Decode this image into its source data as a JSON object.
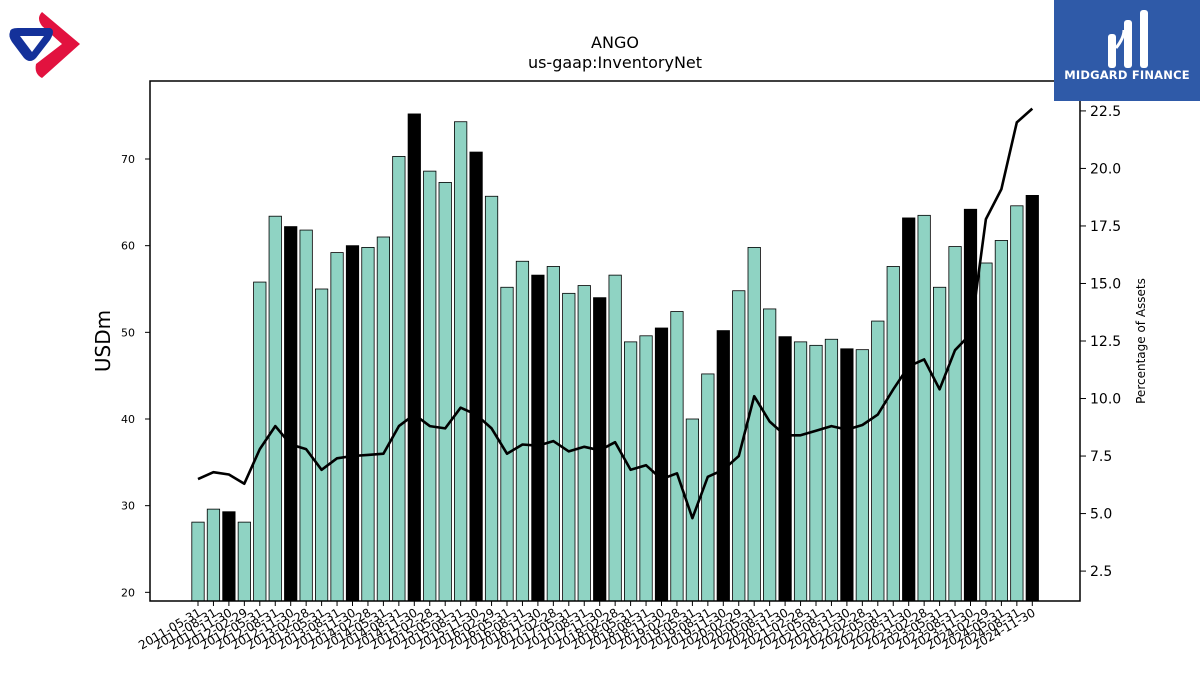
{
  "branding": {
    "left_logo_icon": "red-blue-ring-logo-icon",
    "right_logo_icon": "midgard-bars-logo-icon",
    "right_logo_text": "MIDGARD FINANCE",
    "right_logo_bg": "#2f5aa8"
  },
  "chart_data": {
    "type": "bar",
    "title": "ANGO",
    "subtitle": "us-gaap:InventoryNet",
    "ylabel": "USDm",
    "y2label": "Percentage of Assets",
    "ylim": [
      19,
      79
    ],
    "y2lim": [
      1.2,
      23.8
    ],
    "yticks": [
      20,
      30,
      40,
      50,
      60,
      70
    ],
    "y2ticks": [
      2.5,
      5.0,
      7.5,
      10.0,
      12.5,
      15.0,
      17.5,
      20.0,
      22.5
    ],
    "bar_color": "#8fd3c3",
    "highlight_color": "#000000",
    "line_color": "#000000",
    "categories": [
      "2011-05-31",
      "2011-08-31",
      "2011-11-30",
      "2012-02-29",
      "2012-05-31",
      "2012-08-31",
      "2012-11-30",
      "2013-02-28",
      "2013-05-31",
      "2013-08-31",
      "2013-11-30",
      "2014-02-28",
      "2014-05-31",
      "2014-08-31",
      "2014-11-30",
      "2015-02-28",
      "2015-05-31",
      "2015-08-31",
      "2015-11-30",
      "2016-02-29",
      "2016-05-31",
      "2016-08-31",
      "2016-11-30",
      "2017-02-28",
      "2017-05-31",
      "2017-08-31",
      "2017-11-30",
      "2018-02-28",
      "2018-05-31",
      "2018-08-31",
      "2018-11-30",
      "2019-02-28",
      "2019-05-31",
      "2019-08-31",
      "2019-11-30",
      "2020-02-29",
      "2020-05-31",
      "2020-08-31",
      "2020-11-30",
      "2021-02-28",
      "2021-05-31",
      "2021-08-31",
      "2021-11-30",
      "2022-02-28",
      "2022-05-31",
      "2022-08-31",
      "2022-11-30",
      "2023-02-28",
      "2023-05-31",
      "2023-08-31",
      "2023-11-30",
      "2024-02-29",
      "2024-05-31",
      "2024-08-31",
      "2024-11-30"
    ],
    "series": [
      {
        "values": [
          28.1,
          29.6,
          29.3,
          28.1,
          55.8,
          63.4,
          62.2,
          61.8,
          55.0,
          59.2,
          60.0,
          59.8,
          61.0,
          70.3,
          75.2,
          68.6,
          67.3,
          74.3,
          70.8,
          65.7,
          55.2,
          58.2,
          56.6,
          57.6,
          54.5,
          55.4,
          54.0,
          56.6,
          48.9,
          49.6,
          50.5,
          52.4,
          40.0,
          45.2,
          50.2,
          54.8,
          59.8,
          52.7,
          49.5,
          48.9,
          48.5,
          49.2,
          48.1,
          48.0,
          51.3,
          57.6,
          63.2,
          63.5,
          55.2,
          59.9,
          64.2,
          58.0,
          60.6,
          64.6,
          65.8
        ],
        "highlight": [
          false,
          false,
          true,
          false,
          false,
          false,
          true,
          false,
          false,
          false,
          true,
          false,
          false,
          false,
          true,
          false,
          false,
          false,
          true,
          false,
          false,
          false,
          true,
          false,
          false,
          false,
          true,
          false,
          false,
          false,
          true,
          false,
          false,
          false,
          true,
          false,
          false,
          false,
          true,
          false,
          false,
          false,
          true,
          false,
          false,
          false,
          true,
          false,
          false,
          false,
          true,
          false,
          false,
          false,
          true
        ]
      },
      {
        "axis": "right",
        "type": "line",
        "values": [
          6.5,
          6.8,
          6.7,
          6.3,
          7.8,
          8.8,
          8.0,
          7.8,
          6.9,
          7.4,
          7.5,
          7.55,
          7.6,
          8.8,
          9.3,
          8.8,
          8.7,
          9.6,
          9.3,
          8.7,
          7.6,
          8.0,
          7.95,
          8.15,
          7.7,
          7.9,
          7.75,
          8.1,
          6.9,
          7.1,
          6.5,
          6.75,
          4.8,
          6.6,
          6.9,
          7.5,
          10.1,
          9.0,
          8.4,
          8.4,
          8.6,
          8.8,
          8.65,
          8.85,
          9.3,
          10.4,
          11.4,
          11.7,
          10.4,
          12.1,
          12.8,
          17.8,
          19.1,
          22.0,
          22.6
        ]
      }
    ]
  }
}
